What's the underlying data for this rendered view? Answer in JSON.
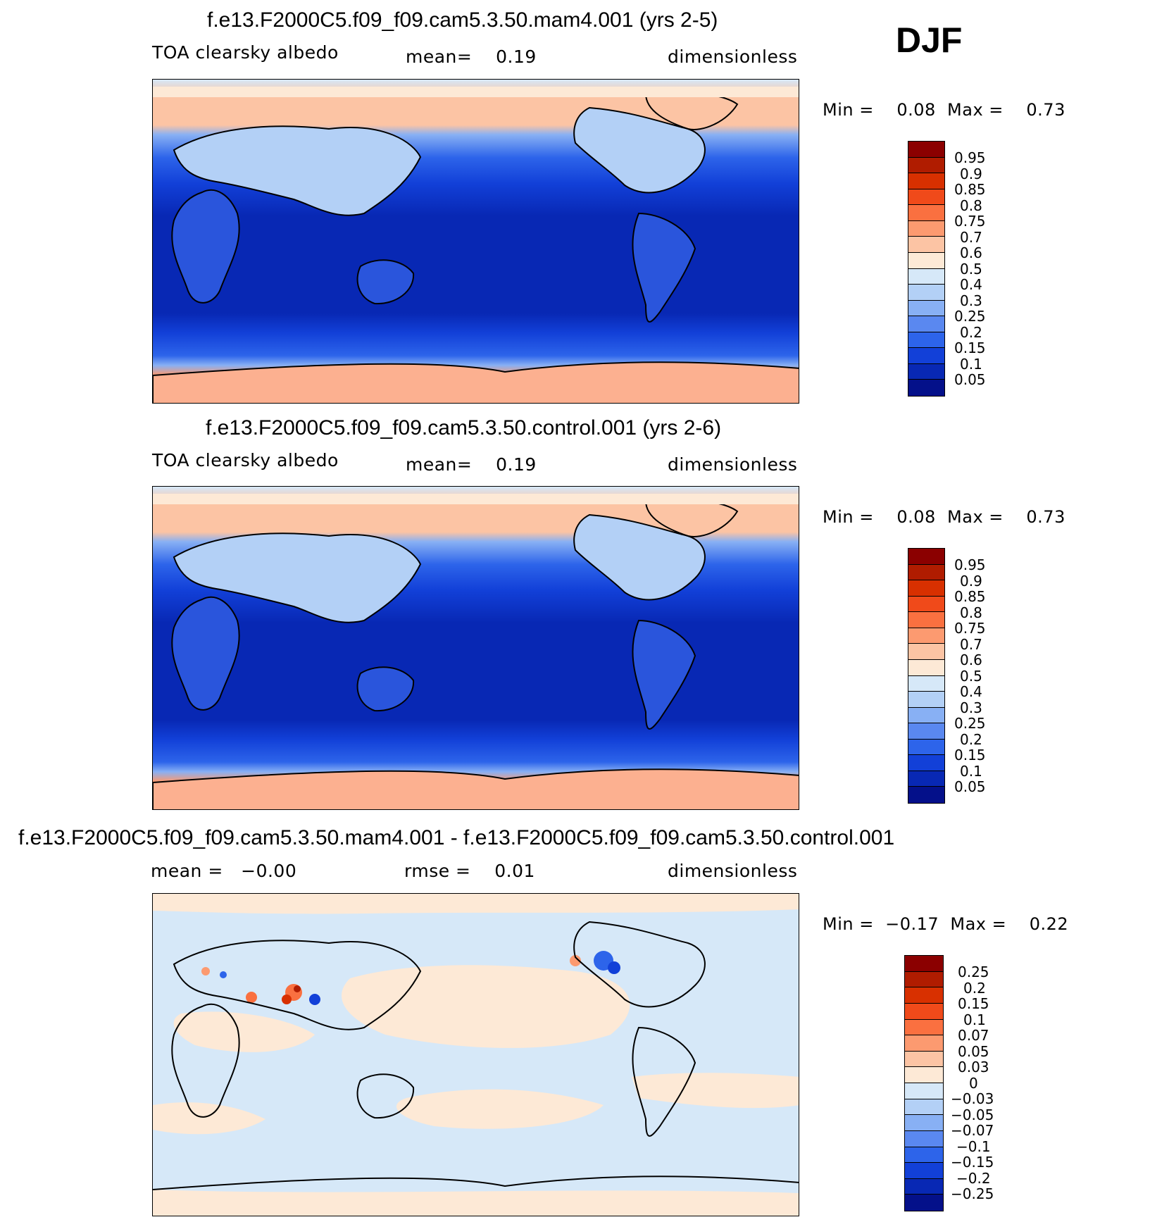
{
  "season": "DJF",
  "panels": [
    {
      "title": "f.e13.F2000C5.f09_f09.cam5.3.50.mam4.001 (yrs 2-5)",
      "left_label": "TOA clearsky albedo",
      "mid_label": "mean=    0.19",
      "units": "dimensionless",
      "min_max": "Min =    0.08  Max =    0.73",
      "colorbar_labels": [
        "0.95",
        "0.9",
        "0.85",
        "0.8",
        "0.75",
        "0.7",
        "0.6",
        "0.5",
        "0.4",
        "0.3",
        "0.25",
        "0.2",
        "0.15",
        "0.1",
        "0.05"
      ]
    },
    {
      "title": "f.e13.F2000C5.f09_f09.cam5.3.50.control.001 (yrs 2-6)",
      "left_label": "TOA clearsky albedo",
      "mid_label": "mean=    0.19",
      "units": "dimensionless",
      "min_max": "Min =    0.08  Max =    0.73",
      "colorbar_labels": [
        "0.95",
        "0.9",
        "0.85",
        "0.8",
        "0.75",
        "0.7",
        "0.6",
        "0.5",
        "0.4",
        "0.3",
        "0.25",
        "0.2",
        "0.15",
        "0.1",
        "0.05"
      ]
    },
    {
      "title": "f.e13.F2000C5.f09_f09.cam5.3.50.mam4.001 - f.e13.F2000C5.f09_f09.cam5.3.50.control.001",
      "left_label": "mean =   −0.00",
      "mid_label": "rmse =    0.01",
      "units": "dimensionless",
      "min_max": "Min =  −0.17  Max =    0.22",
      "colorbar_labels": [
        "0.25",
        "0.2",
        "0.15",
        "0.1",
        "0.07",
        "0.05",
        "0.03",
        "0",
        "−0.03",
        "−0.05",
        "−0.07",
        "−0.1",
        "−0.15",
        "−0.2",
        "−0.25"
      ]
    }
  ],
  "colors": {
    "seq": [
      "#8b0000",
      "#b01c00",
      "#d83000",
      "#f04a1a",
      "#fa7040",
      "#fc9a70",
      "#fcc4a4",
      "#fde9d6",
      "#d6e8f8",
      "#b3d0f6",
      "#88b0f4",
      "#5a88f0",
      "#2d64ea",
      "#1240d8",
      "#0828b4",
      "#04108a"
    ],
    "land": "#2a55dc",
    "coast": "#000000"
  }
}
